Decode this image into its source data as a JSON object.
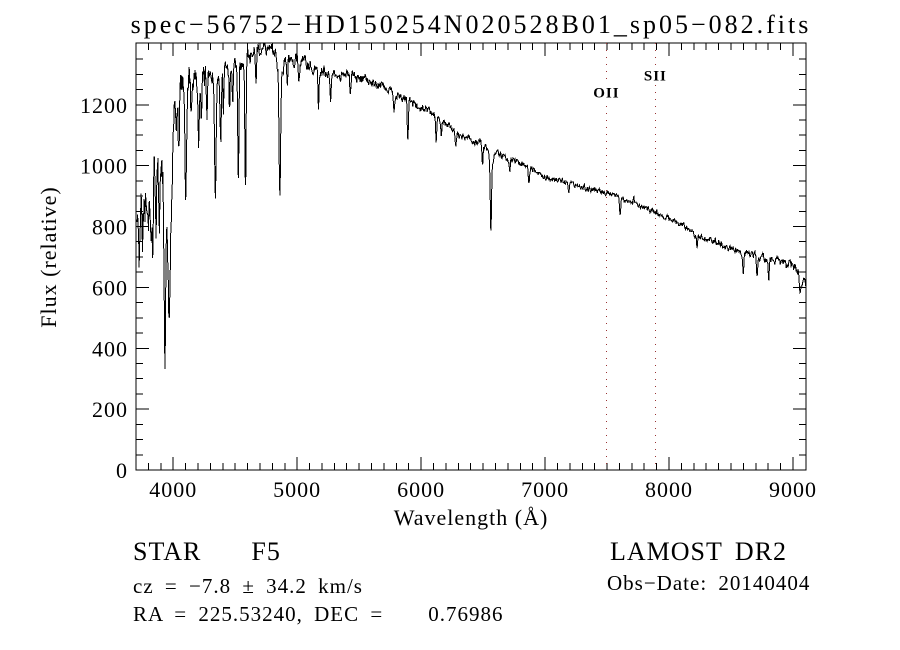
{
  "title": "spec−56752−HD150254N020528B01_sp05−082.fits",
  "annotations": {
    "class_label": "STAR    F5",
    "cz": "cz = −7.8 ± 34.2 km/s",
    "radec": "RA = 225.53240, DEC =    0.76986",
    "survey": "LAMOST DR2",
    "obs_date": "Obs−Date: 20140404"
  },
  "colors": {
    "foreground": "#000000",
    "background": "#ffffff",
    "reference_line": "#993333"
  },
  "chart_data": {
    "type": "line",
    "title": "spec−56752−HD150254N020528B01_sp05−082.fits",
    "xlabel": "Wavelength (Å)",
    "ylabel": "Flux (relative)",
    "xlim": [
      3700,
      9105
    ],
    "ylim": [
      0,
      1403
    ],
    "x_ticks": [
      4000,
      5000,
      6000,
      7000,
      8000,
      9000
    ],
    "x_minor_step": 100,
    "y_ticks": [
      0,
      200,
      400,
      600,
      800,
      1000,
      1200
    ],
    "y_minor_step": 50,
    "grid": false,
    "legend": "none",
    "reference_lines": [
      {
        "label": "OII",
        "wavelength": 7495,
        "label_flux": 1240
      },
      {
        "label": "SII",
        "wavelength": 7890,
        "label_flux": 1297
      }
    ],
    "series": [
      {
        "name": "spectrum",
        "line_format": "[wavelength_angstrom, depth_flux, sigma_angstrom]",
        "continuum_points": [
          [
            3705,
            830
          ],
          [
            3730,
            860
          ],
          [
            3760,
            900
          ],
          [
            3800,
            950
          ],
          [
            3850,
            1010
          ],
          [
            3900,
            1080
          ],
          [
            3940,
            1100
          ],
          [
            3985,
            950
          ],
          [
            4005,
            1200
          ],
          [
            4040,
            1258
          ],
          [
            4100,
            1283
          ],
          [
            4150,
            1290
          ],
          [
            4250,
            1298
          ],
          [
            4350,
            1305
          ],
          [
            4450,
            1318
          ],
          [
            4560,
            1335
          ],
          [
            4650,
            1375
          ],
          [
            4720,
            1394
          ],
          [
            4780,
            1390
          ],
          [
            4830,
            1375
          ],
          [
            4900,
            1352
          ],
          [
            5000,
            1346
          ],
          [
            5100,
            1330
          ],
          [
            5250,
            1306
          ],
          [
            5400,
            1300
          ],
          [
            5550,
            1282
          ],
          [
            5700,
            1252
          ],
          [
            5850,
            1222
          ],
          [
            6000,
            1192
          ],
          [
            6150,
            1160
          ],
          [
            6310,
            1098
          ],
          [
            6450,
            1080
          ],
          [
            6560,
            1052
          ],
          [
            6700,
            1022
          ],
          [
            6850,
            1000
          ],
          [
            7000,
            964
          ],
          [
            7200,
            940
          ],
          [
            7350,
            924
          ],
          [
            7495,
            910
          ],
          [
            7650,
            886
          ],
          [
            7890,
            848
          ],
          [
            8075,
            812
          ],
          [
            8235,
            768
          ],
          [
            8400,
            748
          ],
          [
            8595,
            714
          ],
          [
            8700,
            701
          ],
          [
            8800,
            696
          ],
          [
            8900,
            685
          ],
          [
            9000,
            668
          ],
          [
            9040,
            656
          ],
          [
            9105,
            600
          ]
        ],
        "absorption_lines": [
          [
            3727,
            140,
            5
          ],
          [
            3750,
            150,
            5
          ],
          [
            3772,
            130,
            5
          ],
          [
            3798,
            160,
            5
          ],
          [
            3820,
            165,
            5
          ],
          [
            3835,
            300,
            5
          ],
          [
            3862,
            280,
            5
          ],
          [
            3889,
            270,
            6
          ],
          [
            3933,
            480,
            6
          ],
          [
            3950,
            290,
            25
          ],
          [
            3968,
            350,
            6
          ],
          [
            4026,
            90,
            4
          ],
          [
            4045,
            215,
            5
          ],
          [
            4101,
            390,
            7
          ],
          [
            4144,
            130,
            4
          ],
          [
            4205,
            250,
            5
          ],
          [
            4226,
            150,
            4
          ],
          [
            4272,
            140,
            4
          ],
          [
            4340,
            415,
            7
          ],
          [
            4383,
            240,
            5
          ],
          [
            4405,
            150,
            4
          ],
          [
            4455,
            140,
            4
          ],
          [
            4481,
            120,
            4
          ],
          [
            4525,
            370,
            5
          ],
          [
            4583,
            430,
            5
          ],
          [
            4668,
            130,
            4
          ],
          [
            4861,
            400,
            6
          ],
          [
            4862,
            70,
            22
          ],
          [
            4920,
            110,
            4
          ],
          [
            5015,
            80,
            4
          ],
          [
            5172,
            115,
            5
          ],
          [
            5270,
            95,
            4
          ],
          [
            5430,
            70,
            4
          ],
          [
            5780,
            60,
            4
          ],
          [
            5893,
            115,
            5
          ],
          [
            6122,
            75,
            4
          ],
          [
            6162,
            65,
            4
          ],
          [
            6280,
            55,
            4
          ],
          [
            6495,
            70,
            4
          ],
          [
            6563,
            238,
            5
          ],
          [
            6564,
            40,
            18
          ],
          [
            6715,
            40,
            4
          ],
          [
            6870,
            50,
            5
          ],
          [
            7190,
            35,
            4
          ],
          [
            7605,
            55,
            5
          ],
          [
            8227,
            45,
            4
          ],
          [
            8600,
            75,
            4
          ],
          [
            8710,
            65,
            4
          ],
          [
            8805,
            58,
            4
          ],
          [
            9058,
            65,
            7
          ]
        ],
        "emission_spikes": [
          [
            7715,
            32,
            4
          ]
        ],
        "noise_sigma_points": [
          [
            3705,
            50
          ],
          [
            3800,
            48
          ],
          [
            3880,
            40
          ],
          [
            3990,
            32
          ],
          [
            4050,
            26
          ],
          [
            4200,
            22
          ],
          [
            4500,
            17
          ],
          [
            4800,
            13
          ],
          [
            5200,
            12
          ],
          [
            5600,
            10
          ],
          [
            6000,
            8.5
          ],
          [
            6500,
            7
          ],
          [
            7000,
            5.5
          ],
          [
            7600,
            5
          ],
          [
            8200,
            6
          ],
          [
            8700,
            8
          ],
          [
            9105,
            10
          ]
        ]
      }
    ]
  }
}
